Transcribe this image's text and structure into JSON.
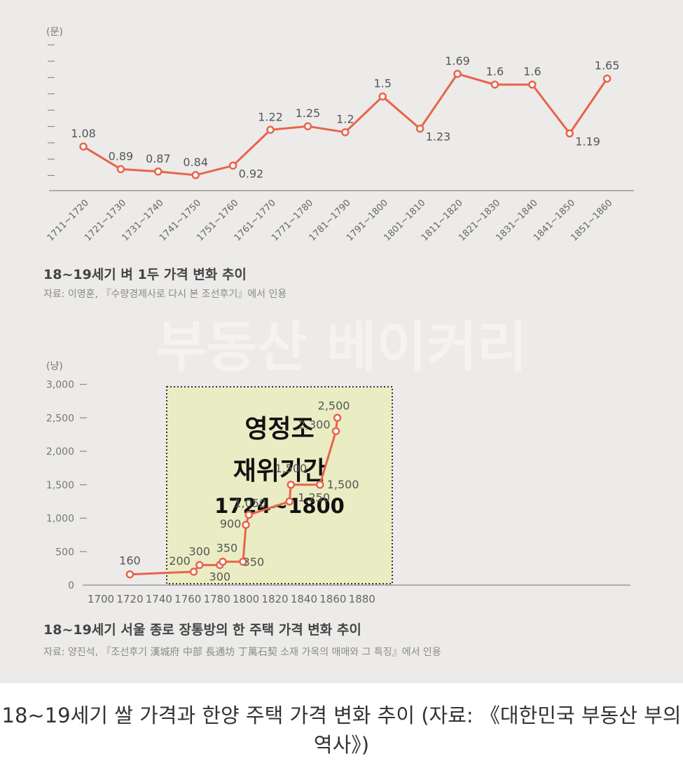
{
  "colors": {
    "line": "#e8644a",
    "background": "#ecebe9",
    "highlight_box": "#eaecc4",
    "text": "#5a5a5a"
  },
  "watermark": "부동산 베이커리",
  "caption": "18~19세기 쌀 가격과 한양 주택 가격 변화 추이 (자료: 《대한민국 부동산 부의 역사》)",
  "highlight": {
    "line1": "영정조",
    "line2": "재위기간",
    "line3": "1724~1800"
  },
  "chart_data": [
    {
      "type": "line",
      "title": "18~19세기 벼 1두 가격 변화 추이",
      "source": "자료: 이영훈, 『수량경제사로 다시 본 조선후기』에서 인용",
      "unit": "(문)",
      "categories": [
        "1711~1720",
        "1721~1730",
        "1731~1740",
        "1741~1750",
        "1751~1760",
        "1761~1770",
        "1771~1780",
        "1781~1790",
        "1791~1800",
        "1801~1810",
        "1811~1820",
        "1821~1830",
        "1831~1840",
        "1841~1850",
        "1851~1860"
      ],
      "values": [
        1.08,
        0.89,
        0.87,
        0.84,
        0.92,
        1.22,
        1.25,
        1.2,
        1.5,
        1.23,
        1.69,
        1.6,
        1.6,
        1.19,
        1.65
      ],
      "labels": [
        "1.08",
        "0.89",
        "0.87",
        "0.84",
        "0.92",
        "1.22",
        "1.25",
        "1.2",
        "1.5",
        "1.23",
        "1.69",
        "1.6",
        "1.6",
        "1.19",
        "1.65"
      ],
      "grid": false
    },
    {
      "type": "line",
      "title": "18~19세기 서울 종로 장통방의 한 주택 가격 변화 추이",
      "source": "자료: 양진석, 『조선후기 漢城府 中部 長通坊 丁萬石契 소재 가옥의 매매와 그 특징』에서 인용",
      "unit": "(냥)",
      "x": [
        1720,
        1764,
        1768,
        1782,
        1784,
        1798,
        1800,
        1802,
        1830,
        1831,
        1851,
        1862,
        1863
      ],
      "values": [
        160,
        200,
        300,
        300,
        350,
        350,
        900,
        1050,
        1250,
        1500,
        1500,
        2300,
        2500
      ],
      "labels": [
        "160",
        "200",
        "300",
        "300",
        "350",
        "350",
        "900",
        "1,050",
        "1,250",
        "1,500",
        "1,500",
        "2,300",
        "2,500"
      ],
      "xticks": [
        "1700",
        "1720",
        "1740",
        "1760",
        "1780",
        "1800",
        "1820",
        "1840",
        "1860",
        "1880"
      ],
      "yticks": [
        "0",
        "500",
        "1,000",
        "1,500",
        "2,000",
        "2,500",
        "3,000"
      ],
      "xlim": [
        1700,
        1880
      ],
      "ylim": [
        0,
        3000
      ],
      "grid": false
    }
  ]
}
